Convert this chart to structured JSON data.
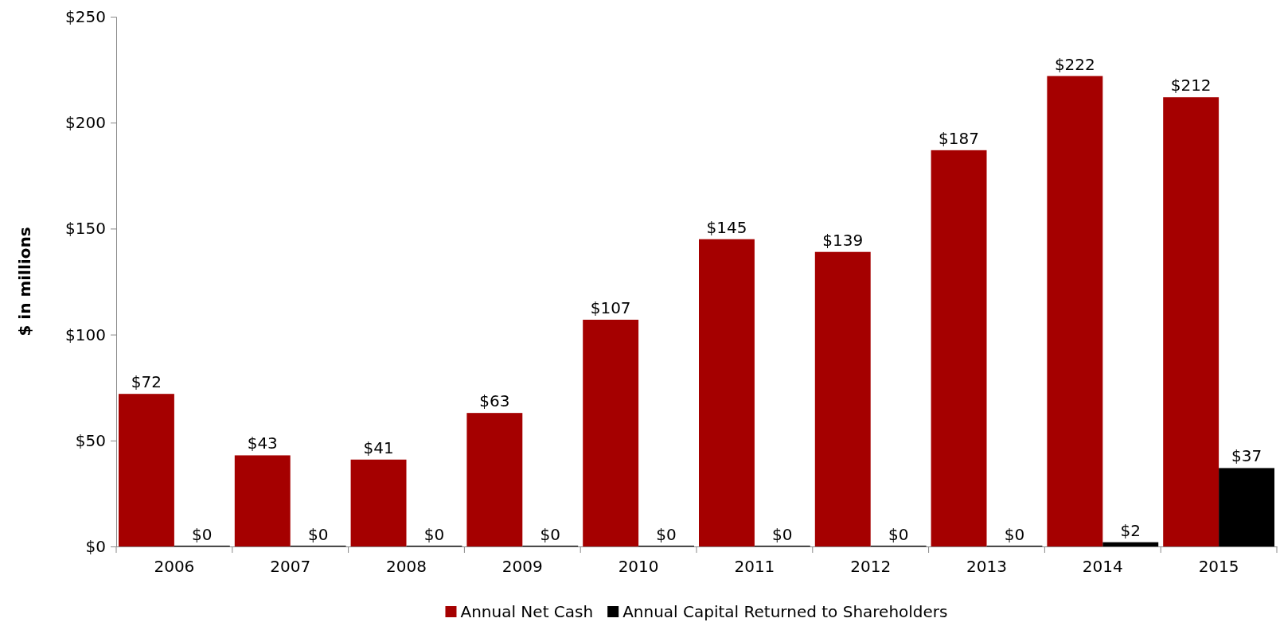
{
  "chart_data": {
    "type": "bar",
    "ylabel": "$ in millions",
    "categories": [
      "2006",
      "2007",
      "2008",
      "2009",
      "2010",
      "2011",
      "2012",
      "2013",
      "2014",
      "2015"
    ],
    "series": [
      {
        "name": "Annual Net Cash",
        "color": "#a50000",
        "values": [
          72,
          43,
          41,
          63,
          107,
          145,
          139,
          187,
          222,
          212
        ],
        "value_labels": [
          "$72",
          "$43",
          "$41",
          "$63",
          "$107",
          "$145",
          "$139",
          "$187",
          "$222",
          "$212"
        ]
      },
      {
        "name": "Annual Capital Returned to Shareholders",
        "color": "#000000",
        "values": [
          0,
          0,
          0,
          0,
          0,
          0,
          0,
          0,
          2,
          37
        ],
        "value_labels": [
          "$0",
          "$0",
          "$0",
          "$0",
          "$0",
          "$0",
          "$0",
          "$0",
          "$2",
          "$37"
        ]
      }
    ],
    "ylim": [
      0,
      250
    ],
    "yticks": [
      {
        "value": 0,
        "label": "$0"
      },
      {
        "value": 50,
        "label": "$50"
      },
      {
        "value": 100,
        "label": "$100"
      },
      {
        "value": 150,
        "label": "$150"
      },
      {
        "value": 200,
        "label": "$200"
      },
      {
        "value": 250,
        "label": "$250"
      }
    ],
    "grid": false,
    "legend": "bottom"
  }
}
